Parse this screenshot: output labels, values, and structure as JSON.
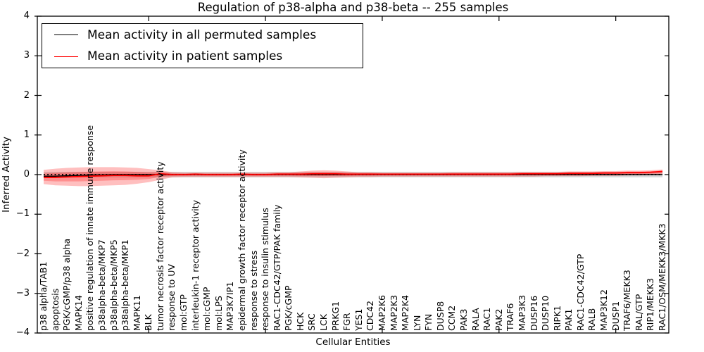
{
  "title": "Regulation of p38-alpha and p38-beta -- 255 samples",
  "legend": {
    "items": [
      {
        "label": "Mean activity in all permuted samples",
        "color": "#000000"
      },
      {
        "label": "Mean activity in patient samples",
        "color": "#ff0000"
      }
    ]
  },
  "chart_data": {
    "type": "line",
    "title": "Regulation of p38-alpha and p38-beta -- 255 samples",
    "xlabel": "Cellular Entities",
    "ylabel": "Inferred Activity",
    "ylim": [
      -4,
      4
    ],
    "yticks": [
      4,
      3,
      2,
      1,
      0,
      -1,
      -2,
      -3,
      -4
    ],
    "x_major_ticks_at_entity": [
      10,
      20,
      30,
      40,
      50
    ],
    "grid": false,
    "legend_position": "upper left",
    "zero_line": {
      "style": "dotted",
      "color": "#000000"
    },
    "categories": [
      "p38 alpha/TAB1",
      "apoptosis",
      "PGK/cGMP/p38 alpha",
      "MAPK14",
      "positive regulation of innate immune response",
      "p38alpha-beta/MKP7",
      "p38alpha-beta/MKP5",
      "p38alpha-beta/MKP1",
      "MAPK11",
      "BLK",
      "tumor necrosis factor receptor activity",
      "response to UV",
      "mol:GTP",
      "interleukin-1 receptor activity",
      "mol:cGMP",
      "mol:LPS",
      "MAP3K7IP1",
      "epidermal growth factor receptor activity",
      "response to stress",
      "response to insulin stimulus",
      "RAC1-CDC42/GTP/PAK family",
      "PGK/cGMP",
      "HCK",
      "SRC",
      "LCK",
      "PRKG1",
      "FGR",
      "YES1",
      "CDC42",
      "MAP2K6",
      "MAP2K3",
      "MAP2K4",
      "LYN",
      "FYN",
      "DUSP8",
      "CCM2",
      "PAK3",
      "RALA",
      "RAC1",
      "PAK2",
      "TRAF6",
      "MAP3K3",
      "DUSP16",
      "DUSP10",
      "RIPK1",
      "PAK1",
      "RAC1-CDC42/GTP",
      "RALB",
      "MAP3K12",
      "DUSP1",
      "TRAF6/MEKK3",
      "RAL/GTP",
      "RIP1/MEKK3",
      "RAC1/OSM/MEKK3/MKK3"
    ],
    "series": [
      {
        "name": "Mean activity in all permuted samples",
        "color": "#000000",
        "values": [
          -0.04,
          -0.04,
          -0.03,
          -0.02,
          -0.01,
          -0.01,
          0,
          0,
          0,
          0,
          0,
          0,
          0,
          0,
          0,
          0,
          0,
          0,
          0,
          0,
          0,
          0,
          0,
          0,
          0,
          0,
          0,
          0,
          0,
          0,
          0,
          0,
          0,
          0,
          0,
          0,
          0,
          0,
          0,
          0,
          0,
          0,
          0,
          0,
          0,
          0,
          0,
          0,
          0,
          0,
          0,
          0,
          0,
          0
        ]
      },
      {
        "name": "Mean activity in patient samples",
        "color": "#ff0000",
        "values": [
          -0.07,
          -0.07,
          -0.06,
          -0.05,
          -0.04,
          -0.03,
          -0.02,
          -0.02,
          -0.03,
          -0.03,
          0.02,
          0,
          0,
          0.01,
          0,
          0,
          0,
          0.01,
          0,
          0,
          0.01,
          0.01,
          0.01,
          0.02,
          0.02,
          0.02,
          0.01,
          0.01,
          0.01,
          0.01,
          0.01,
          0.01,
          0.01,
          0.01,
          0.01,
          0.01,
          0.01,
          0.01,
          0.01,
          0.01,
          0.01,
          0.02,
          0.02,
          0.02,
          0.02,
          0.03,
          0.03,
          0.03,
          0.04,
          0.04,
          0.05,
          0.05,
          0.06,
          0.08
        ]
      }
    ],
    "patient_band": {
      "fill": "rgba(255,0,0,0.25)",
      "upper": [
        0.12,
        0.15,
        0.17,
        0.18,
        0.19,
        0.19,
        0.19,
        0.18,
        0.17,
        0.14,
        0.11,
        0.06,
        0.05,
        0.05,
        0.05,
        0.05,
        0.05,
        0.05,
        0.05,
        0.05,
        0.06,
        0.06,
        0.08,
        0.1,
        0.11,
        0.1,
        0.08,
        0.06,
        0.06,
        0.05,
        0.05,
        0.05,
        0.05,
        0.05,
        0.05,
        0.06,
        0.06,
        0.06,
        0.06,
        0.06,
        0.06,
        0.07,
        0.07,
        0.07,
        0.07,
        0.08,
        0.08,
        0.08,
        0.09,
        0.09,
        0.1,
        0.1,
        0.11,
        0.13
      ],
      "lower": [
        -0.24,
        -0.27,
        -0.28,
        -0.29,
        -0.29,
        -0.28,
        -0.27,
        -0.26,
        -0.23,
        -0.19,
        -0.13,
        -0.07,
        -0.06,
        -0.06,
        -0.06,
        -0.06,
        -0.06,
        -0.06,
        -0.06,
        -0.06,
        -0.06,
        -0.06,
        -0.07,
        -0.08,
        -0.09,
        -0.08,
        -0.07,
        -0.06,
        -0.06,
        -0.05,
        -0.05,
        -0.05,
        -0.05,
        -0.05,
        -0.05,
        -0.05,
        -0.05,
        -0.05,
        -0.05,
        -0.05,
        -0.05,
        -0.05,
        -0.05,
        -0.04,
        -0.04,
        -0.04,
        -0.04,
        -0.03,
        -0.03,
        -0.03,
        -0.02,
        -0.02,
        -0.01,
        0
      ]
    },
    "permuted_band": {
      "fill": "rgba(0,0,0,0.15)",
      "upper": 0.07,
      "lower": -0.07
    }
  }
}
